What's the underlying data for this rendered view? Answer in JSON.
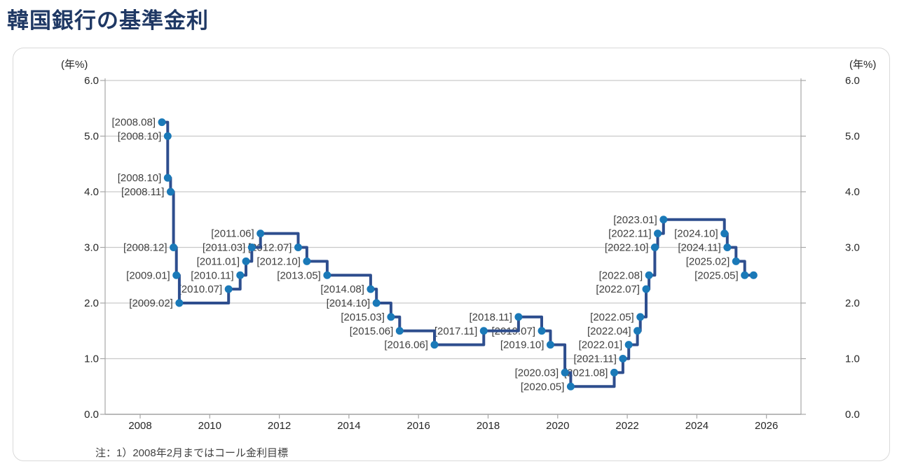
{
  "page": {
    "title": "韓国銀行の基準金利",
    "note": "注：1）2008年2月まではコール金利目標"
  },
  "chart_data": {
    "type": "line",
    "subtype": "step-after",
    "title": "韓国銀行の基準金利",
    "ylabel_left": "(年%)",
    "ylabel_right": "(年%)",
    "ylim": [
      0.0,
      6.0
    ],
    "grid": true,
    "y_ticks": [
      "6.0",
      "5.0",
      "4.0",
      "3.0",
      "2.0",
      "1.0",
      "0.0"
    ],
    "x_ticks": [
      "2008",
      "2010",
      "2012",
      "2014",
      "2016",
      "2018",
      "2020",
      "2022",
      "2024",
      "2026"
    ],
    "x_range_years": [
      2007,
      2027
    ],
    "colors": {
      "line": "#2e4e8e",
      "marker": "#1a79b8",
      "grid": "#c9c9c9",
      "axis": "#a6a6a6",
      "data_label": "#404040",
      "tick_label": "#262626",
      "title": "#1f3864"
    },
    "points": [
      {
        "date": "2008.08",
        "rate": 5.25,
        "label": "[2008.08]"
      },
      {
        "date": "2008.10",
        "rate": 5.0,
        "label": "[2008.10]"
      },
      {
        "date": "2008.10",
        "rate": 4.25,
        "label": "[2008.10]"
      },
      {
        "date": "2008.11",
        "rate": 4.0,
        "label": "[2008.11]"
      },
      {
        "date": "2008.12",
        "rate": 3.0,
        "label": "[2008.12]"
      },
      {
        "date": "2009.01",
        "rate": 2.5,
        "label": "[2009.01]"
      },
      {
        "date": "2009.02",
        "rate": 2.0,
        "label": "[2009.02]"
      },
      {
        "date": "2010.07",
        "rate": 2.25,
        "label": "[2010.07]"
      },
      {
        "date": "2010.11",
        "rate": 2.5,
        "label": "[2010.11]"
      },
      {
        "date": "2011.01",
        "rate": 2.75,
        "label": "[2011.01]"
      },
      {
        "date": "2011.03",
        "rate": 3.0,
        "label": "[2011.03]"
      },
      {
        "date": "2011.06",
        "rate": 3.25,
        "label": "[2011.06]"
      },
      {
        "date": "2012.07",
        "rate": 3.0,
        "label": "[2012.07]"
      },
      {
        "date": "2012.10",
        "rate": 2.75,
        "label": "[2012.10]"
      },
      {
        "date": "2013.05",
        "rate": 2.5,
        "label": "[2013.05]"
      },
      {
        "date": "2014.08",
        "rate": 2.25,
        "label": "[2014.08]"
      },
      {
        "date": "2014.10",
        "rate": 2.0,
        "label": "[2014.10]"
      },
      {
        "date": "2015.03",
        "rate": 1.75,
        "label": "[2015.03]"
      },
      {
        "date": "2015.06",
        "rate": 1.5,
        "label": "[2015.06]"
      },
      {
        "date": "2016.06",
        "rate": 1.25,
        "label": "[2016.06]"
      },
      {
        "date": "2017.11",
        "rate": 1.5,
        "label": "[2017.11]"
      },
      {
        "date": "2018.11",
        "rate": 1.75,
        "label": "[2018.11]"
      },
      {
        "date": "2019.07",
        "rate": 1.5,
        "label": "[2019.07]"
      },
      {
        "date": "2019.10",
        "rate": 1.25,
        "label": "[2019.10]"
      },
      {
        "date": "2020.03",
        "rate": 0.75,
        "label": "[2020.03]"
      },
      {
        "date": "2020.05",
        "rate": 0.5,
        "label": "[2020.05]"
      },
      {
        "date": "2021.08",
        "rate": 0.75,
        "label": "[2021.08]"
      },
      {
        "date": "2021.11",
        "rate": 1.0,
        "label": "[2021.11]"
      },
      {
        "date": "2022.01",
        "rate": 1.25,
        "label": "[2022.01]"
      },
      {
        "date": "2022.04",
        "rate": 1.5,
        "label": "[2022.04]"
      },
      {
        "date": "2022.05",
        "rate": 1.75,
        "label": "[2022.05]"
      },
      {
        "date": "2022.07",
        "rate": 2.25,
        "label": "[2022.07]"
      },
      {
        "date": "2022.08",
        "rate": 2.5,
        "label": "[2022.08]"
      },
      {
        "date": "2022.10",
        "rate": 3.0,
        "label": "[2022.10]"
      },
      {
        "date": "2022.11",
        "rate": 3.25,
        "label": "[2022.11]"
      },
      {
        "date": "2023.01",
        "rate": 3.5,
        "label": "[2023.01]"
      },
      {
        "date": "2024.10",
        "rate": 3.25,
        "label": "[2024.10]"
      },
      {
        "date": "2024.11",
        "rate": 3.0,
        "label": "[2024.11]"
      },
      {
        "date": "2025.02",
        "rate": 2.75,
        "label": "[2025.02]"
      },
      {
        "date": "2025.05",
        "rate": 2.5,
        "label": "[2025.05]"
      }
    ],
    "series_end_marker": {
      "year_frac": 2025.63,
      "rate": 2.5
    }
  }
}
